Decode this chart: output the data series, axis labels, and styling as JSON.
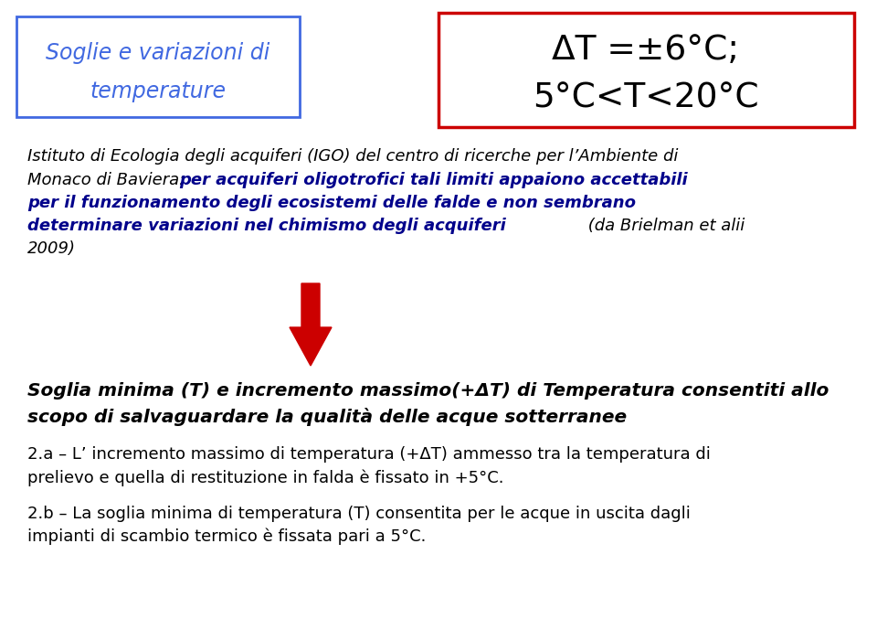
{
  "bg_color": "#ffffff",
  "box1_text_line1": "Soglie e variazioni di",
  "box1_text_line2": "temperature",
  "box1_border_color": "#4169E1",
  "box1_text_color": "#4169E1",
  "box2_text_line1": "ΔT =±6°C;",
  "box2_text_line2": "5°C<T<20°C",
  "box2_border_color": "#cc0000",
  "box2_text_color": "#000000",
  "italic_text_normal_part1": "Istituto di Ecologia degli acquiferi (IGO) del centro di ricerche per l’Ambiente di",
  "italic_text_normal_part2": "Monaco di Baviera: ",
  "bold_title_line1": "Soglia minima (T) e incremento massimo(+ΔT) di Temperatura consentiti allo",
  "bold_title_line2": "scopo di salvaguardare la qualità delle acque sotterranee",
  "point_2a_line1": "2.a – L’ incremento massimo di temperatura (+ΔT) ammesso tra la temperatura di",
  "point_2a_line2": "prelievo e quella di restituzione in falda è fissato in +5°C.",
  "point_2b_line1": "2.b – La soglia minima di temperatura (T) consentita per le acque in uscita dagli",
  "point_2b_line2": "impianti di scambio termico è fissata pari a 5°C.",
  "blue_bold_line1": "per acquiferi oligotrofici tali limiti appaiono accettabili",
  "blue_bold_line2": "per il funzionamento degli ecosistemi delle falde e non sembrano",
  "blue_bold_line3": "determinare variazioni nel chimismo degli acquiferi",
  "normal_end": " (da Brielman et alii",
  "normal_end2": "2009)",
  "arrow_color": "#cc0000",
  "normal_text_color": "#000000",
  "blue_bold_color": "#00008B"
}
